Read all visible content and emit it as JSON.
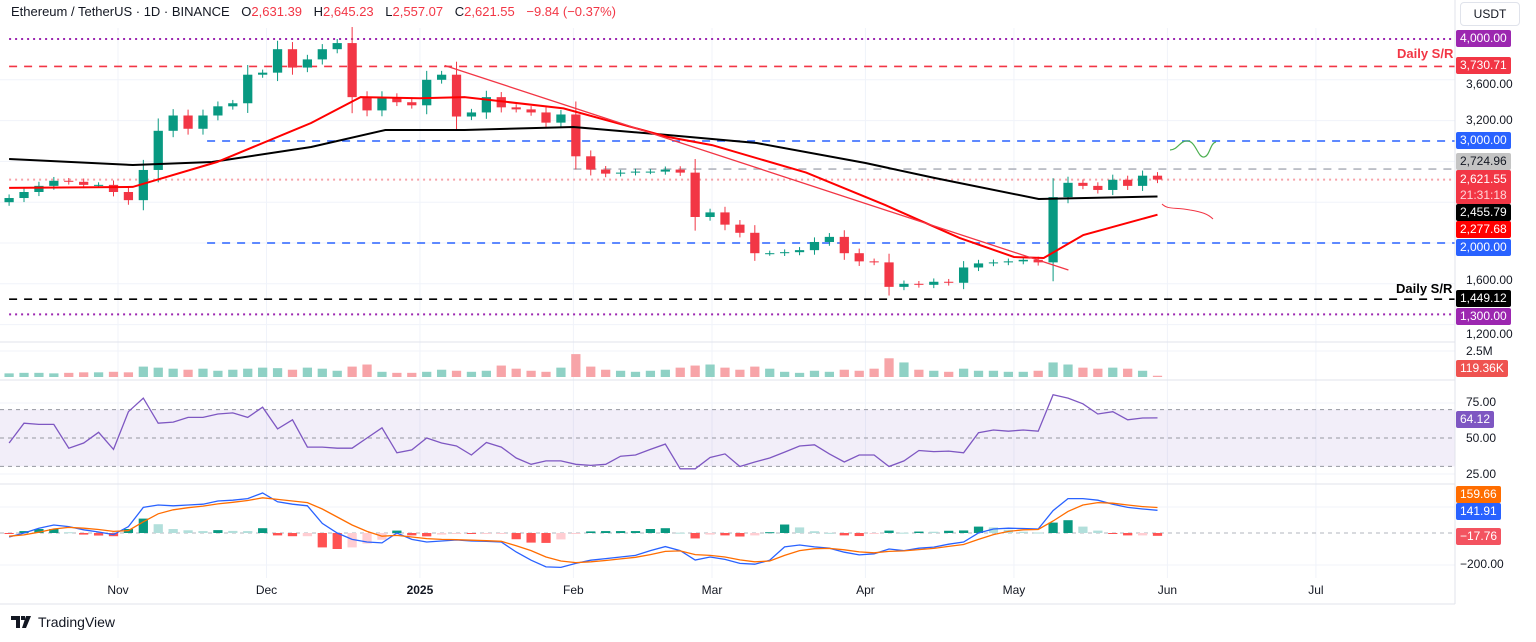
{
  "header": {
    "symbol": "Ethereum / TetherUS · 1D · BINANCE",
    "open_label": "O",
    "open": "2,631.39",
    "high_label": "H",
    "high": "2,645.23",
    "low_label": "L",
    "low": "2,557.07",
    "close_label": "C",
    "close": "2,621.55",
    "change": "−9.84 (−0.37%)"
  },
  "currency_button": "USDT",
  "price_axis": {
    "ticks": [
      "3,600.00",
      "3,200.00",
      "1,600.00",
      "1,200.00"
    ],
    "badges": {
      "level_4000": "4,000.00",
      "daily_sr_high": "3,730.71",
      "level_3000": "3,000.00",
      "prev_high": "2,724.96",
      "last_price": "2,621.55",
      "countdown": "21:31:18",
      "sma200": "2,455.79",
      "ema50": "2,277.68",
      "level_2000": "2,000.00",
      "daily_sr_low": "1,449.12",
      "level_1300": "1,300.00"
    }
  },
  "annotations": {
    "daily_sr_top": "Daily S/R",
    "daily_sr_bottom": "Daily S/R"
  },
  "volume_axis": {
    "tick": "2.5M",
    "last": "119.36K"
  },
  "rsi_axis": {
    "ticks": [
      "75.00",
      "50.00",
      "25.00"
    ],
    "last": "64.12"
  },
  "macd_axis": {
    "signal_last": "159.66",
    "macd_last": "141.91",
    "hist_last": "−17.76",
    "tick": "−200.00"
  },
  "time_axis": [
    {
      "label": "Nov",
      "date": "2024-11-01"
    },
    {
      "label": "Dec",
      "date": "2024-12-01"
    },
    {
      "label": "2025",
      "date": "2025-01-01",
      "bold": true
    },
    {
      "label": "Feb",
      "date": "2025-02-01"
    },
    {
      "label": "Mar",
      "date": "2025-03-01"
    },
    {
      "label": "Apr",
      "date": "2025-04-01"
    },
    {
      "label": "May",
      "date": "2025-05-01"
    },
    {
      "label": "Jun",
      "date": "2025-06-01"
    },
    {
      "label": "Jul",
      "date": "2025-07-01"
    }
  ],
  "brand": "TradingView",
  "colors": {
    "up": "#089981",
    "down": "#f23645",
    "ema50": "#ff0000",
    "sma200": "#000000",
    "rsi": "#7e57c2",
    "macd": "#2962ff",
    "signal": "#ff6d00",
    "level_blue": "#2962ff",
    "level_purple": "#9c27b0"
  },
  "chart_data": {
    "type": "candlestick",
    "symbol": "ETH/USDT",
    "interval": "1D",
    "date_range": [
      "2024-10-10",
      "2025-05-30"
    ],
    "price_range": [
      1200,
      4100
    ],
    "close": [
      2441,
      2500,
      2560,
      2610,
      2600,
      2570,
      2570,
      2500,
      2420,
      2716,
      3100,
      3250,
      3120,
      3250,
      3340,
      3370,
      3650,
      3670,
      3900,
      3720,
      3800,
      3900,
      3960,
      3430,
      3300,
      3430,
      3380,
      3350,
      3600,
      3650,
      3240,
      3280,
      3430,
      3330,
      3310,
      3280,
      3180,
      3260,
      2850,
      2720,
      2680,
      2690,
      2700,
      2700,
      2720,
      2690,
      2255,
      2300,
      2180,
      2100,
      1900,
      1900,
      1910,
      1930,
      2010,
      2060,
      1900,
      1820,
      1810,
      1570,
      1600,
      1590,
      1620,
      1610,
      1760,
      1800,
      1810,
      1820,
      1835,
      1810,
      2450,
      2590,
      2560,
      2520,
      2620,
      2560,
      2660,
      2621.55
    ],
    "volume_millions": [
      0.35,
      0.4,
      0.4,
      0.35,
      0.4,
      0.45,
      0.45,
      0.5,
      0.45,
      1.0,
      0.9,
      0.8,
      0.7,
      0.8,
      0.6,
      0.7,
      0.8,
      0.9,
      0.85,
      0.7,
      0.9,
      0.8,
      0.6,
      1.0,
      1.2,
      0.5,
      0.4,
      0.4,
      0.5,
      0.7,
      0.6,
      0.5,
      0.6,
      1.1,
      0.8,
      0.6,
      0.5,
      0.9,
      2.2,
      1.0,
      0.7,
      0.6,
      0.5,
      0.6,
      0.7,
      0.9,
      1.1,
      1.2,
      0.9,
      0.7,
      1.0,
      0.8,
      0.5,
      0.4,
      0.6,
      0.5,
      0.7,
      0.6,
      0.8,
      1.8,
      1.4,
      0.7,
      0.6,
      0.5,
      0.8,
      0.6,
      0.6,
      0.5,
      0.5,
      0.6,
      1.4,
      1.2,
      0.9,
      0.8,
      0.9,
      0.8,
      0.6,
      0.12
    ],
    "ema50": [
      [
        "2024-10-10",
        2540
      ],
      [
        "2024-11-04",
        2550
      ],
      [
        "2024-11-21",
        2794
      ],
      [
        "2024-12-10",
        3176
      ],
      [
        "2024-12-20",
        3430
      ],
      [
        "2025-01-01",
        3420
      ],
      [
        "2025-01-10",
        3430
      ],
      [
        "2025-01-30",
        3320
      ],
      [
        "2025-02-20",
        3040
      ],
      [
        "2025-03-01",
        2960
      ],
      [
        "2025-03-20",
        2690
      ],
      [
        "2025-04-05",
        2372
      ],
      [
        "2025-04-20",
        2050
      ],
      [
        "2025-05-01",
        1863
      ],
      [
        "2025-05-07",
        1853
      ],
      [
        "2025-05-15",
        2078
      ],
      [
        "2025-05-30",
        2277.68
      ]
    ],
    "sma200": [
      [
        "2024-10-10",
        2824
      ],
      [
        "2024-11-04",
        2765
      ],
      [
        "2024-11-20",
        2794
      ],
      [
        "2024-12-10",
        2941
      ],
      [
        "2024-12-25",
        3108
      ],
      [
        "2025-01-10",
        3108
      ],
      [
        "2025-02-01",
        3137
      ],
      [
        "2025-02-20",
        3059
      ],
      [
        "2025-03-10",
        2980
      ],
      [
        "2025-04-01",
        2784
      ],
      [
        "2025-04-15",
        2637
      ],
      [
        "2025-05-06",
        2431
      ],
      [
        "2025-05-30",
        2455.79
      ]
    ],
    "trendline": [
      [
        "2025-01-06",
        3740
      ],
      [
        "2025-05-12",
        1735
      ]
    ],
    "levels": [
      {
        "price": 4000,
        "style": "dotted",
        "color": "#9c27b0",
        "from": "2024-10-10"
      },
      {
        "price": 3730.71,
        "style": "dashed",
        "color": "#f23645",
        "from": "2024-10-10"
      },
      {
        "price": 3000,
        "style": "dashed",
        "color": "#2962ff",
        "from": "2024-11-19"
      },
      {
        "price": 2724.96,
        "style": "dashed",
        "color": "#b2b5be",
        "from": "2025-02-01"
      },
      {
        "price": 2621.55,
        "style": "dotted",
        "color": "#f7a1a8",
        "from": "2024-10-10"
      },
      {
        "price": 2000,
        "style": "dashed",
        "color": "#2962ff",
        "from": "2024-11-19"
      },
      {
        "price": 1449.12,
        "style": "dashed",
        "color": "#000000",
        "from": "2024-10-10"
      },
      {
        "price": 1300,
        "style": "dotted",
        "color": "#9c27b0",
        "from": "2024-10-10"
      }
    ],
    "rsi": {
      "range": [
        25,
        75
      ],
      "bands": [
        30,
        50,
        70
      ],
      "values": [
        46.5,
        60.4,
        59.6,
        59.6,
        42.8,
        46.5,
        54,
        42,
        68.5,
        78.1,
        60.4,
        61.2,
        64.5,
        64.5,
        66.9,
        67.7,
        64.5,
        71.7,
        56.4,
        62.8,
        43.6,
        43.6,
        42.8,
        42.8,
        50,
        57.2,
        39.6,
        41.6,
        50,
        46.5,
        44.4,
        38,
        46.8,
        43.6,
        35.9,
        31.5,
        33.9,
        33.9,
        31.5,
        30.7,
        31.5,
        37.2,
        38,
        42,
        45.7,
        28.3,
        28.3,
        36.3,
        38.8,
        29.9,
        33.1,
        35.9,
        40.1,
        44.4,
        45.2,
        38.8,
        33.1,
        38,
        38,
        29.9,
        33.9,
        41.2,
        40.4,
        40.8,
        39.6,
        53.7,
        55.6,
        54.8,
        55.6,
        54.8,
        80.5,
        78.1,
        74.1,
        66.9,
        68.5,
        62.8,
        64.1,
        64.12
      ]
    },
    "macd": {
      "macd": [
        -25,
        0,
        30,
        50,
        40,
        20,
        6,
        -10,
        40,
        160,
        175,
        170,
        175,
        180,
        200,
        205,
        215,
        250,
        195,
        180,
        170,
        60,
        0,
        -40,
        -56,
        -62,
        0,
        -40,
        -56,
        -50,
        -44,
        -50,
        -52,
        -56,
        -119,
        -170,
        -212,
        -215,
        -190,
        -170,
        -160,
        -150,
        -140,
        -110,
        -85,
        -110,
        -169,
        -150,
        -165,
        -190,
        -195,
        -170,
        -87,
        -75,
        -87,
        -95,
        -120,
        -137,
        -130,
        -100,
        -110,
        -95,
        -88,
        -70,
        -56,
        0,
        25,
        30,
        28,
        25,
        140,
        215,
        215,
        205,
        180,
        160,
        150,
        141.91
      ],
      "signal": [
        -20,
        -12,
        5,
        25,
        35,
        30,
        22,
        10,
        15,
        70,
        120,
        145,
        158,
        168,
        182,
        192,
        203,
        220,
        210,
        200,
        190,
        150,
        100,
        50,
        10,
        -20,
        -15,
        -25,
        -35,
        -40,
        -42,
        -45,
        -48,
        -52,
        -80,
        -110,
        -150,
        -175,
        -185,
        -180,
        -172,
        -162,
        -152,
        -135,
        -115,
        -112,
        -135,
        -140,
        -150,
        -168,
        -180,
        -175,
        -140,
        -110,
        -98,
        -96,
        -105,
        -118,
        -124,
        -115,
        -112,
        -104,
        -96,
        -84,
        -72,
        -40,
        -10,
        10,
        20,
        22,
        75,
        135,
        175,
        190,
        186,
        175,
        165,
        159.66
      ]
    }
  }
}
